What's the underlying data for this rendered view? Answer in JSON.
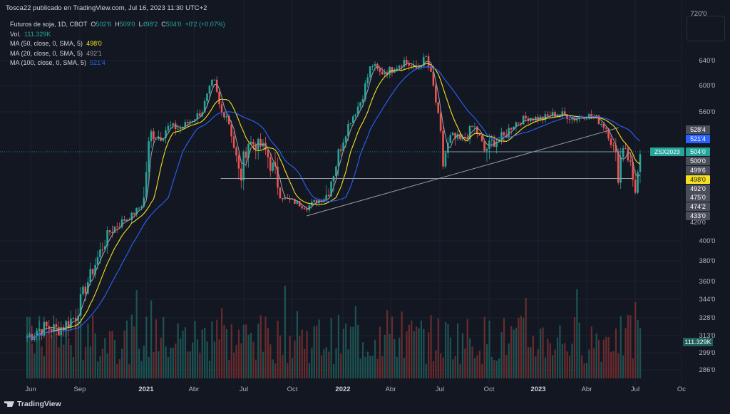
{
  "header": {
    "publisher": "Tosca22 publicado en TradingView.com, Jul 16, 2023 11:30 UTC+2"
  },
  "legend": {
    "symbol": "Futuros de soja, 1D, CBOT",
    "ohlc": {
      "o_label": "O",
      "o_value": "502'6",
      "h_label": "H",
      "h_value": "509'0",
      "l_label": "L",
      "l_value": "498'2",
      "c_label": "C",
      "c_value": "504'0",
      "change": "+0'2 (+0.07%)"
    },
    "volume_label": "Vol.",
    "volume_value": "111.329K",
    "ma": [
      {
        "label": "MA (50, close, 0, SMA, 5)",
        "value": "498'0",
        "color": "#f7e11f"
      },
      {
        "label": "MA (20, close, 0, SMA, 5)",
        "value": "492'1",
        "color": "#9598a1"
      },
      {
        "label": "MA (100, close, 0, SMA, 5)",
        "value": "521'4",
        "color": "#2962ff"
      }
    ]
  },
  "footer": {
    "brand": "TradingView"
  },
  "chart_data": {
    "type": "candlestick",
    "symbol_tag": "ZSX2023",
    "y_axis_labels": [
      "640'0",
      "600'0",
      "560'0",
      "400'0",
      "380'0",
      "360'0",
      "344'0",
      "328'0",
      "313'0",
      "299'0",
      "286'0"
    ],
    "y_axis_top_clipped": "720'0",
    "x_axis_labels": [
      "Jun",
      "Sep",
      "2021",
      "Abr",
      "Jul",
      "Oct",
      "2022",
      "Abr",
      "Jul",
      "Oct",
      "2023",
      "Abr",
      "Jul",
      "Oc"
    ],
    "price_tags": [
      {
        "text": "528'4",
        "bg": "#4a4e59",
        "fg": "#ffffff"
      },
      {
        "text": "521'4",
        "bg": "#2962ff",
        "fg": "#ffffff"
      },
      {
        "text": "504'0",
        "bg": "#26a69a",
        "fg": "#ffffff"
      },
      {
        "text": "500'0",
        "bg": "#4a4e59",
        "fg": "#ffffff"
      },
      {
        "text": "499'6",
        "bg": "#4a4e59",
        "fg": "#ffffff"
      },
      {
        "text": "498'0",
        "bg": "#f7e11f",
        "fg": "#131722"
      },
      {
        "text": "492'0",
        "bg": "#4a4e59",
        "fg": "#ffffff"
      },
      {
        "text": "475'0",
        "bg": "#4a4e59",
        "fg": "#ffffff"
      },
      {
        "text": "474'2",
        "bg": "#4a4e59",
        "fg": "#ffffff"
      },
      {
        "text": "433'0",
        "bg": "#4a4e59",
        "fg": "#ffffff"
      },
      {
        "text": "420'0",
        "bg": "none",
        "fg": "#b2b5be"
      }
    ],
    "volume_tag": "111.329K",
    "price_path": [
      [
        "2020-06-01",
        312
      ],
      [
        "2020-06-20",
        318
      ],
      [
        "2020-07-10",
        320
      ],
      [
        "2020-07-25",
        318
      ],
      [
        "2020-08-10",
        322
      ],
      [
        "2020-08-30",
        330
      ],
      [
        "2020-09-15",
        352
      ],
      [
        "2020-10-01",
        372
      ],
      [
        "2020-10-15",
        390
      ],
      [
        "2020-11-01",
        410
      ],
      [
        "2020-11-20",
        420
      ],
      [
        "2020-12-10",
        432
      ],
      [
        "2020-12-31",
        460
      ],
      [
        "2021-01-15",
        525
      ],
      [
        "2021-02-01",
        520
      ],
      [
        "2021-02-20",
        535
      ],
      [
        "2021-03-10",
        530
      ],
      [
        "2021-03-31",
        545
      ],
      [
        "2021-04-20",
        560
      ],
      [
        "2021-05-12",
        610
      ],
      [
        "2021-05-25",
        560
      ],
      [
        "2021-06-05",
        555
      ],
      [
        "2021-06-20",
        505
      ],
      [
        "2021-06-30",
        485
      ],
      [
        "2021-07-15",
        515
      ],
      [
        "2021-08-10",
        510
      ],
      [
        "2021-08-31",
        492
      ],
      [
        "2021-09-20",
        472
      ],
      [
        "2021-10-10",
        464
      ],
      [
        "2021-10-31",
        452
      ],
      [
        "2021-11-15",
        465
      ],
      [
        "2021-12-05",
        475
      ],
      [
        "2021-12-31",
        505
      ],
      [
        "2022-01-20",
        545
      ],
      [
        "2022-02-10",
        580
      ],
      [
        "2022-02-28",
        635
      ],
      [
        "2022-03-15",
        620
      ],
      [
        "2022-04-05",
        625
      ],
      [
        "2022-04-30",
        640
      ],
      [
        "2022-05-20",
        625
      ],
      [
        "2022-06-09",
        645
      ],
      [
        "2022-06-20",
        610
      ],
      [
        "2022-07-01",
        555
      ],
      [
        "2022-07-10",
        495
      ],
      [
        "2022-07-25",
        520
      ],
      [
        "2022-08-15",
        515
      ],
      [
        "2022-09-05",
        535
      ],
      [
        "2022-09-25",
        505
      ],
      [
        "2022-10-10",
        515
      ],
      [
        "2022-10-31",
        520
      ],
      [
        "2022-11-20",
        540
      ],
      [
        "2022-12-15",
        550
      ],
      [
        "2023-01-10",
        548
      ],
      [
        "2023-01-31",
        556
      ],
      [
        "2023-02-20",
        555
      ],
      [
        "2023-03-10",
        548
      ],
      [
        "2023-03-31",
        555
      ],
      [
        "2023-04-20",
        548
      ],
      [
        "2023-05-10",
        530
      ],
      [
        "2023-05-31",
        490
      ],
      [
        "2023-06-10",
        515
      ],
      [
        "2023-06-20",
        498
      ],
      [
        "2023-06-30",
        480
      ],
      [
        "2023-07-14",
        504
      ]
    ]
  }
}
